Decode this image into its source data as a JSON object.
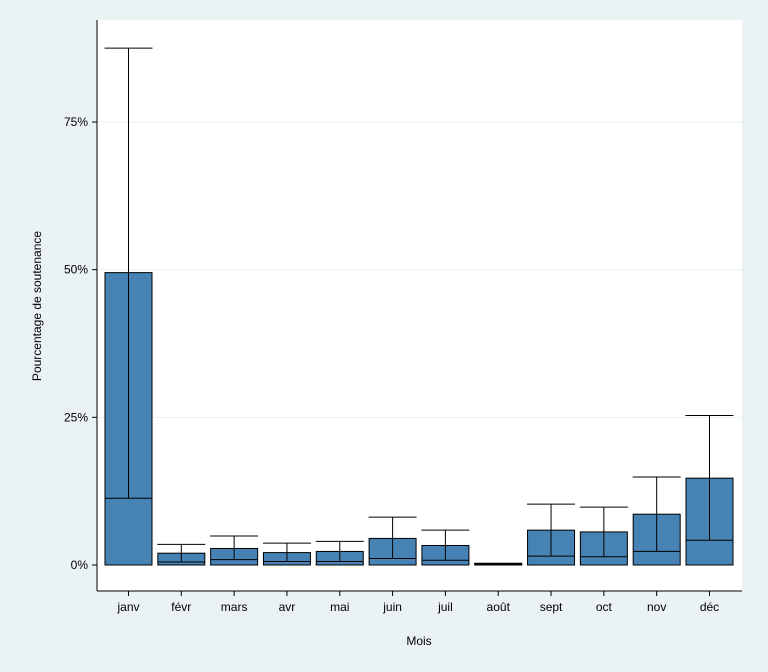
{
  "chart_data": {
    "type": "bar",
    "xlabel": "Mois",
    "ylabel": "Pourcentage de soutenance",
    "ylim": [
      0,
      93
    ],
    "yticks": [
      0,
      25,
      50,
      75
    ],
    "ytick_labels": [
      "0%",
      "25%",
      "50%",
      "75%"
    ],
    "categories": [
      "janv",
      "févr",
      "mars",
      "avr",
      "mai",
      "juin",
      "juil",
      "août",
      "sept",
      "oct",
      "nov",
      "déc"
    ],
    "values": [
      49.5,
      2.0,
      2.8,
      2.1,
      2.3,
      4.5,
      3.3,
      0.2,
      5.9,
      5.6,
      8.6,
      14.7
    ],
    "median_line": [
      11.3,
      0.5,
      0.9,
      0.6,
      0.6,
      1.1,
      0.8,
      0.1,
      1.5,
      1.4,
      2.3,
      4.2
    ],
    "upper_whisker": [
      87.5,
      3.5,
      4.9,
      3.7,
      4.0,
      8.1,
      5.9,
      0.3,
      10.3,
      9.8,
      14.9,
      25.3
    ],
    "grid": true,
    "colors": {
      "bar": "#4682b4",
      "background": "#eaf2f3",
      "plot": "#ffffff",
      "grid": "#eaf2f3"
    }
  }
}
